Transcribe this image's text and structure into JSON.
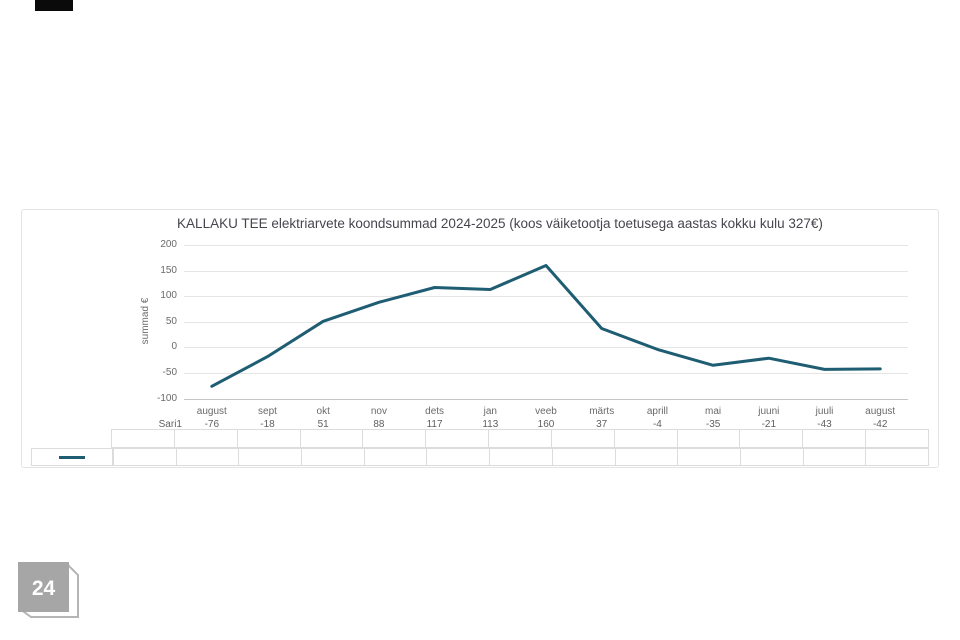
{
  "page": {
    "page_number": "24"
  },
  "chart": {
    "title": "KALLAKU TEE elektriarvete koondsummad 2024-2025 (koos väiketootja toetusega aastas kokku kulu 327€)",
    "y_axis_title": "summad €",
    "series_name": "Sari1",
    "line_color": "#1f5d73",
    "grid_color": "#e5e5e5",
    "axis_line_color": "#c6c6c6"
  },
  "chart_data": {
    "type": "line",
    "title": "KALLAKU TEE elektriarvete koondsummad 2024-2025 (koos väiketootja toetusega aastas kokku kulu 327€)",
    "xlabel": "",
    "ylabel": "summad €",
    "ylim": [
      -100,
      200
    ],
    "y_ticks": [
      200,
      150,
      100,
      50,
      0,
      -50,
      -100
    ],
    "grid": true,
    "legend_position": "bottom-left data-table",
    "categories": [
      "august",
      "sept",
      "okt",
      "nov",
      "dets",
      "jan",
      "veeb",
      "märts",
      "aprill",
      "mai",
      "juuni",
      "juuli",
      "august"
    ],
    "series": [
      {
        "name": "Sari1",
        "values": [
          -76,
          -18,
          51,
          88,
          117,
          113,
          160,
          37,
          -4,
          -35,
          -21,
          -43,
          -42
        ]
      }
    ]
  }
}
